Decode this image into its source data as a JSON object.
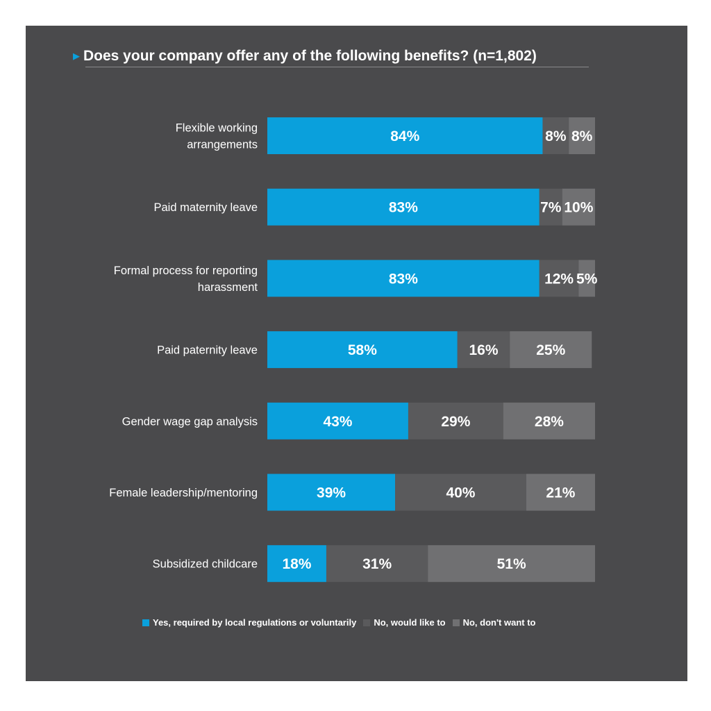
{
  "chart_data": {
    "type": "bar",
    "orientation": "horizontal",
    "stacked": true,
    "title": "Does your company offer any of the following benefits? (n=1,802)",
    "categories": [
      [
        "Flexible working",
        "arrangements"
      ],
      [
        "Paid maternity leave"
      ],
      [
        "Formal process for reporting",
        "harassment"
      ],
      [
        "Paid paternity leave"
      ],
      [
        "Gender wage gap analysis"
      ],
      [
        "Female leadership/mentoring"
      ],
      [
        "Subsidized childcare"
      ]
    ],
    "series": [
      {
        "name": "Yes, required by local regulations or voluntarily",
        "color": "#0aa0dc",
        "values": [
          84,
          83,
          83,
          58,
          43,
          39,
          18
        ]
      },
      {
        "name": "No, would like to",
        "color": "#5a5a5c",
        "values": [
          8,
          7,
          12,
          16,
          29,
          40,
          31
        ]
      },
      {
        "name": "No, don't want to",
        "color": "#707072",
        "values": [
          8,
          10,
          5,
          25,
          28,
          21,
          51
        ]
      }
    ],
    "value_suffix": "%",
    "legend_position": "bottom",
    "grid": false
  }
}
